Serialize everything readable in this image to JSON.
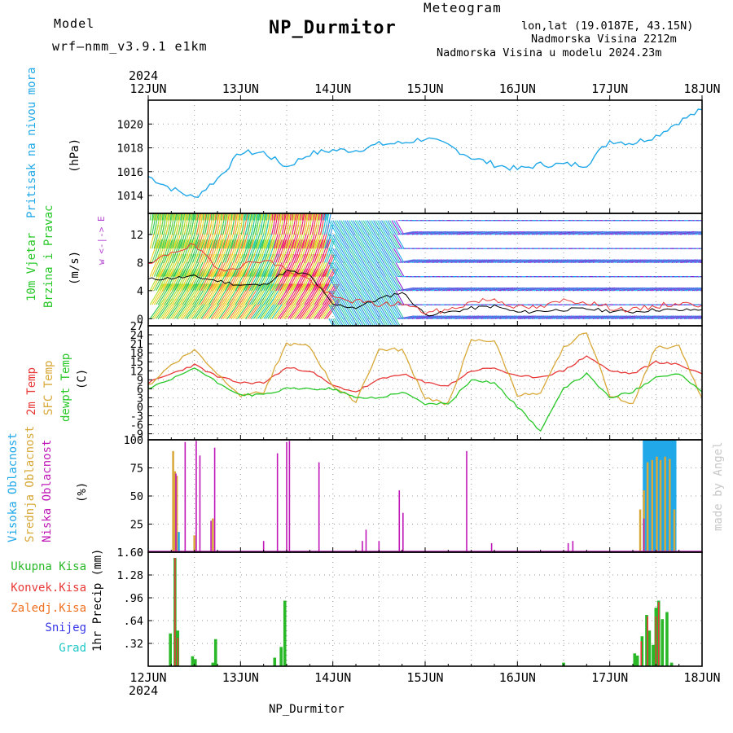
{
  "header": {
    "model_label": "Model",
    "model_name": "wrf—nmm_v3.9.1  e1km",
    "title": "NP_Durmitor",
    "meteogram_label": "Meteogram",
    "coords": "lon,lat (19.0187E, 43.15N)",
    "elevation": "Nadmorska Visina 2212m",
    "model_elevation": "Nadmorska Visina u modelu 2024.23m",
    "year_top": "2024",
    "year_bottom": "2024",
    "footer_station": "NP_Durmitor",
    "credit": "made by Angel"
  },
  "colors": {
    "pressure": "#20a8e8",
    "temp2m": "#e83838",
    "sfc": "#d8a838",
    "dewpt": "#28c828",
    "high": "#20a8e8",
    "mid": "#d8a838",
    "low": "#c018b8",
    "total": "#28b828",
    "conv": "#e83838",
    "frozen": "#f07020",
    "snow": "#3838e8",
    "hail": "#20c8c8",
    "purple": "#b040d0"
  },
  "chart_data": [
    {
      "type": "line",
      "name": "pressure",
      "ylabel_color_text": "Pritisak na nivou mora",
      "ylabel": "(hPa)",
      "ylim": [
        1012.5,
        1022
      ],
      "yticks": [
        1014,
        1016,
        1018,
        1020
      ],
      "x_days": [
        "12JUN",
        "13JUN",
        "14JUN",
        "15JUN",
        "16JUN",
        "17JUN",
        "18JUN"
      ],
      "x": [
        0,
        0.25,
        0.5,
        0.75,
        1,
        1.25,
        1.5,
        1.75,
        2,
        2.25,
        2.5,
        2.75,
        3,
        3.25,
        3.5,
        3.75,
        4,
        4.25,
        4.5,
        4.75,
        5,
        5.25,
        5.5,
        5.75,
        6
      ],
      "values": [
        1015.6,
        1014.6,
        1013.8,
        1015.4,
        1017.6,
        1017.6,
        1016.4,
        1017.5,
        1017.8,
        1017.8,
        1018.3,
        1018.4,
        1018.8,
        1018.2,
        1017.2,
        1016.6,
        1016.2,
        1016.6,
        1016.6,
        1016.6,
        1018.6,
        1018.4,
        1019.0,
        1020.2,
        1021.2
      ],
      "grid": true
    },
    {
      "type": "line",
      "name": "wind",
      "labels": [
        "10m Vjetar",
        "Brzina i Pravac"
      ],
      "ylabel": "(m/s)",
      "compass": "w <-|-> E",
      "ylim": [
        -1,
        15
      ],
      "yticks": [
        0,
        4,
        8,
        12
      ],
      "x": [
        0,
        0.25,
        0.5,
        0.75,
        1,
        1.25,
        1.5,
        1.75,
        2,
        2.25,
        2.5,
        2.75,
        3,
        3.25,
        3.5,
        3.75,
        4,
        4.25,
        4.5,
        4.75,
        5,
        5.25,
        5.5,
        5.75,
        6
      ],
      "speed": [
        5.6,
        5.8,
        6.0,
        5.4,
        4.8,
        4.8,
        6.8,
        6.2,
        2.0,
        1.6,
        2.8,
        3.8,
        0.6,
        0.9,
        1.5,
        1.8,
        0.9,
        1.1,
        1.3,
        1.4,
        1.1,
        1.0,
        1.3,
        1.2,
        1.3
      ],
      "gust": [
        7.5,
        9.5,
        10.5,
        7.0,
        7.5,
        8.5,
        7.0,
        5.5,
        3.0,
        2.5,
        2.0,
        2.2,
        0.9,
        1.2,
        2.4,
        2.8,
        1.6,
        1.6,
        2.6,
        2.4,
        1.6,
        1.2,
        1.8,
        2.2,
        1.9
      ],
      "grid": true
    },
    {
      "type": "line",
      "name": "temperature",
      "labels": [
        "2m Temp",
        "SFC Temp",
        "dewpt Temp"
      ],
      "ylabel": "(C)",
      "ylim": [
        -11,
        27
      ],
      "yticks": [
        27,
        24,
        21,
        18,
        15,
        12,
        9,
        6,
        3,
        0,
        -3,
        -6,
        -9
      ],
      "x": [
        0,
        0.25,
        0.5,
        0.75,
        1,
        1.25,
        1.5,
        1.75,
        2,
        2.25,
        2.5,
        2.75,
        3,
        3.25,
        3.5,
        3.75,
        4,
        4.25,
        4.5,
        4.75,
        5,
        5.25,
        5.5,
        5.75,
        6
      ],
      "series": [
        {
          "name": "2m Temp",
          "values": [
            8,
            11,
            14,
            10,
            8,
            8,
            13,
            12,
            7,
            5,
            9,
            11,
            8,
            7,
            12,
            13,
            10,
            10,
            12,
            17,
            12,
            11,
            15,
            14,
            11
          ]
        },
        {
          "name": "SFC Temp",
          "values": [
            7,
            14,
            19,
            11,
            4,
            5,
            21,
            20,
            7,
            2,
            19,
            19,
            3,
            1,
            22,
            22,
            4,
            4,
            20,
            25,
            4,
            1,
            20,
            20,
            3
          ]
        },
        {
          "name": "dewpt Temp",
          "values": [
            6,
            9,
            13,
            8,
            4,
            4,
            6,
            6,
            6,
            3,
            3,
            5,
            1,
            1,
            9,
            8,
            0,
            -8,
            6,
            11,
            3,
            5,
            10,
            11,
            5
          ]
        }
      ],
      "grid": true
    },
    {
      "type": "bar",
      "name": "cloud",
      "labels": [
        "Visoka Oblacnost",
        "Srednja Oblacnost",
        "Niska Oblacnost"
      ],
      "ylabel": "(%)",
      "ylim": [
        0,
        100
      ],
      "yticks": [
        0,
        25,
        50,
        75,
        100
      ],
      "series": [
        {
          "name": "Visoka",
          "x": [
            0.3,
            0.32,
            5.38,
            5.4,
            5.44,
            5.47,
            5.5,
            5.53,
            5.56,
            5.59,
            5.62,
            5.66,
            5.7
          ],
          "values": [
            15,
            18,
            100,
            100,
            100,
            100,
            100,
            100,
            100,
            100,
            100,
            100,
            100
          ]
        },
        {
          "name": "Srednja",
          "x": [
            0.27,
            0.29,
            0.31,
            0.5,
            0.7,
            5.33,
            5.37,
            5.41,
            5.46,
            5.51,
            5.55,
            5.6,
            5.65,
            5.7
          ],
          "values": [
            90,
            72,
            68,
            15,
            30,
            38,
            55,
            80,
            82,
            85,
            82,
            85,
            83,
            38
          ]
        },
        {
          "name": "Niska",
          "x": [
            0.3,
            0.4,
            0.52,
            0.56,
            0.68,
            0.72,
            1.25,
            1.4,
            1.5,
            1.53,
            1.85,
            2.32,
            2.36,
            2.5,
            2.72,
            2.76,
            3.45,
            3.72,
            4.55,
            4.6,
            5.37
          ],
          "values": [
            70,
            98,
            99,
            86,
            28,
            93,
            10,
            88,
            98,
            99,
            80,
            10,
            20,
            10,
            55,
            35,
            90,
            8,
            8,
            10,
            30
          ]
        }
      ],
      "grid": true
    },
    {
      "type": "bar",
      "name": "precip",
      "labels": [
        "Ukupna Kisa",
        "Konvek.Kisa",
        "Zaledj.Kisa",
        "Snijeg",
        "Grad"
      ],
      "ylabel": "1hr Precip (mm)",
      "ylim": [
        0,
        1.6
      ],
      "yticks": [
        0.32,
        0.64,
        0.96,
        1.28,
        1.6
      ],
      "series": [
        {
          "name": "Ukupna",
          "x": [
            0.24,
            0.29,
            0.32,
            0.48,
            0.51,
            0.7,
            0.73,
            1.37,
            1.44,
            1.48,
            4.5,
            5.27,
            5.3,
            5.35,
            5.4,
            5.43,
            5.47,
            5.5,
            5.53,
            5.57,
            5.62,
            5.67
          ],
          "values": [
            0.46,
            1.52,
            0.5,
            0.14,
            0.1,
            0.05,
            0.38,
            0.12,
            0.27,
            0.92,
            0.05,
            0.18,
            0.15,
            0.42,
            0.72,
            0.5,
            0.3,
            0.82,
            0.92,
            0.66,
            0.76,
            0.05
          ]
        },
        {
          "name": "Konvek.",
          "x": [
            0.29,
            0.32,
            5.34,
            5.41,
            5.5,
            5.53
          ],
          "values": [
            1.52,
            0.4,
            0.35,
            0.7,
            0.7,
            0.9
          ]
        }
      ],
      "grid": true
    }
  ]
}
